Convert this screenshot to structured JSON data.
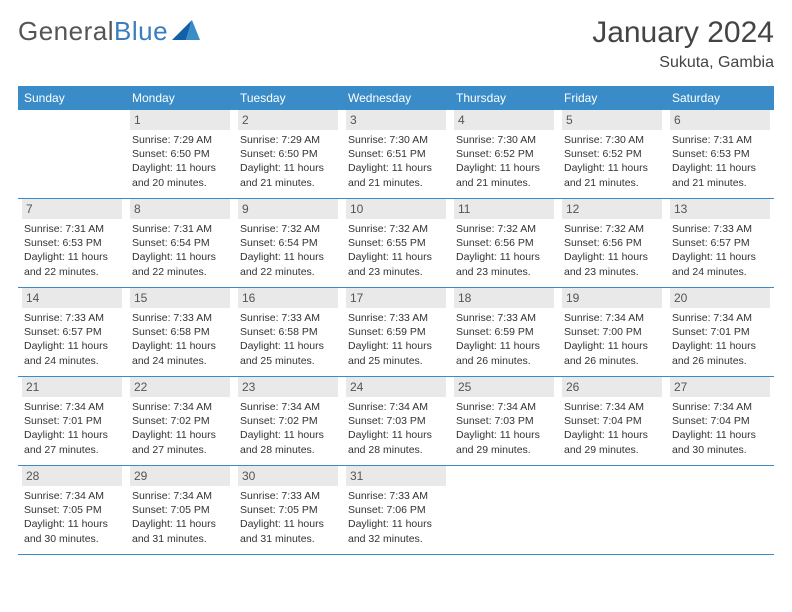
{
  "logo": {
    "text_gray": "General",
    "text_blue": "Blue"
  },
  "header": {
    "month_title": "January 2024",
    "location": "Sukuta, Gambia"
  },
  "colors": {
    "header_blue": "#3a8cc9",
    "text_dark": "#333333",
    "text_mid": "#555555",
    "daynum_bg": "#e9e9e9",
    "logo_blue": "#3a7ebf",
    "rule_blue": "#3a8cc9"
  },
  "typography": {
    "month_title_pt": 30,
    "location_pt": 16,
    "logo_pt": 26,
    "dow_pt": 12,
    "daynum_pt": 12,
    "info_pt": 10.5
  },
  "dow": [
    "Sunday",
    "Monday",
    "Tuesday",
    "Wednesday",
    "Thursday",
    "Friday",
    "Saturday"
  ],
  "weeks": [
    [
      {
        "n": "",
        "sunrise": "",
        "sunset": "",
        "daylight": ""
      },
      {
        "n": "1",
        "sunrise": "Sunrise: 7:29 AM",
        "sunset": "Sunset: 6:50 PM",
        "daylight": "Daylight: 11 hours and 20 minutes."
      },
      {
        "n": "2",
        "sunrise": "Sunrise: 7:29 AM",
        "sunset": "Sunset: 6:50 PM",
        "daylight": "Daylight: 11 hours and 21 minutes."
      },
      {
        "n": "3",
        "sunrise": "Sunrise: 7:30 AM",
        "sunset": "Sunset: 6:51 PM",
        "daylight": "Daylight: 11 hours and 21 minutes."
      },
      {
        "n": "4",
        "sunrise": "Sunrise: 7:30 AM",
        "sunset": "Sunset: 6:52 PM",
        "daylight": "Daylight: 11 hours and 21 minutes."
      },
      {
        "n": "5",
        "sunrise": "Sunrise: 7:30 AM",
        "sunset": "Sunset: 6:52 PM",
        "daylight": "Daylight: 11 hours and 21 minutes."
      },
      {
        "n": "6",
        "sunrise": "Sunrise: 7:31 AM",
        "sunset": "Sunset: 6:53 PM",
        "daylight": "Daylight: 11 hours and 21 minutes."
      }
    ],
    [
      {
        "n": "7",
        "sunrise": "Sunrise: 7:31 AM",
        "sunset": "Sunset: 6:53 PM",
        "daylight": "Daylight: 11 hours and 22 minutes."
      },
      {
        "n": "8",
        "sunrise": "Sunrise: 7:31 AM",
        "sunset": "Sunset: 6:54 PM",
        "daylight": "Daylight: 11 hours and 22 minutes."
      },
      {
        "n": "9",
        "sunrise": "Sunrise: 7:32 AM",
        "sunset": "Sunset: 6:54 PM",
        "daylight": "Daylight: 11 hours and 22 minutes."
      },
      {
        "n": "10",
        "sunrise": "Sunrise: 7:32 AM",
        "sunset": "Sunset: 6:55 PM",
        "daylight": "Daylight: 11 hours and 23 minutes."
      },
      {
        "n": "11",
        "sunrise": "Sunrise: 7:32 AM",
        "sunset": "Sunset: 6:56 PM",
        "daylight": "Daylight: 11 hours and 23 minutes."
      },
      {
        "n": "12",
        "sunrise": "Sunrise: 7:32 AM",
        "sunset": "Sunset: 6:56 PM",
        "daylight": "Daylight: 11 hours and 23 minutes."
      },
      {
        "n": "13",
        "sunrise": "Sunrise: 7:33 AM",
        "sunset": "Sunset: 6:57 PM",
        "daylight": "Daylight: 11 hours and 24 minutes."
      }
    ],
    [
      {
        "n": "14",
        "sunrise": "Sunrise: 7:33 AM",
        "sunset": "Sunset: 6:57 PM",
        "daylight": "Daylight: 11 hours and 24 minutes."
      },
      {
        "n": "15",
        "sunrise": "Sunrise: 7:33 AM",
        "sunset": "Sunset: 6:58 PM",
        "daylight": "Daylight: 11 hours and 24 minutes."
      },
      {
        "n": "16",
        "sunrise": "Sunrise: 7:33 AM",
        "sunset": "Sunset: 6:58 PM",
        "daylight": "Daylight: 11 hours and 25 minutes."
      },
      {
        "n": "17",
        "sunrise": "Sunrise: 7:33 AM",
        "sunset": "Sunset: 6:59 PM",
        "daylight": "Daylight: 11 hours and 25 minutes."
      },
      {
        "n": "18",
        "sunrise": "Sunrise: 7:33 AM",
        "sunset": "Sunset: 6:59 PM",
        "daylight": "Daylight: 11 hours and 26 minutes."
      },
      {
        "n": "19",
        "sunrise": "Sunrise: 7:34 AM",
        "sunset": "Sunset: 7:00 PM",
        "daylight": "Daylight: 11 hours and 26 minutes."
      },
      {
        "n": "20",
        "sunrise": "Sunrise: 7:34 AM",
        "sunset": "Sunset: 7:01 PM",
        "daylight": "Daylight: 11 hours and 26 minutes."
      }
    ],
    [
      {
        "n": "21",
        "sunrise": "Sunrise: 7:34 AM",
        "sunset": "Sunset: 7:01 PM",
        "daylight": "Daylight: 11 hours and 27 minutes."
      },
      {
        "n": "22",
        "sunrise": "Sunrise: 7:34 AM",
        "sunset": "Sunset: 7:02 PM",
        "daylight": "Daylight: 11 hours and 27 minutes."
      },
      {
        "n": "23",
        "sunrise": "Sunrise: 7:34 AM",
        "sunset": "Sunset: 7:02 PM",
        "daylight": "Daylight: 11 hours and 28 minutes."
      },
      {
        "n": "24",
        "sunrise": "Sunrise: 7:34 AM",
        "sunset": "Sunset: 7:03 PM",
        "daylight": "Daylight: 11 hours and 28 minutes."
      },
      {
        "n": "25",
        "sunrise": "Sunrise: 7:34 AM",
        "sunset": "Sunset: 7:03 PM",
        "daylight": "Daylight: 11 hours and 29 minutes."
      },
      {
        "n": "26",
        "sunrise": "Sunrise: 7:34 AM",
        "sunset": "Sunset: 7:04 PM",
        "daylight": "Daylight: 11 hours and 29 minutes."
      },
      {
        "n": "27",
        "sunrise": "Sunrise: 7:34 AM",
        "sunset": "Sunset: 7:04 PM",
        "daylight": "Daylight: 11 hours and 30 minutes."
      }
    ],
    [
      {
        "n": "28",
        "sunrise": "Sunrise: 7:34 AM",
        "sunset": "Sunset: 7:05 PM",
        "daylight": "Daylight: 11 hours and 30 minutes."
      },
      {
        "n": "29",
        "sunrise": "Sunrise: 7:34 AM",
        "sunset": "Sunset: 7:05 PM",
        "daylight": "Daylight: 11 hours and 31 minutes."
      },
      {
        "n": "30",
        "sunrise": "Sunrise: 7:33 AM",
        "sunset": "Sunset: 7:05 PM",
        "daylight": "Daylight: 11 hours and 31 minutes."
      },
      {
        "n": "31",
        "sunrise": "Sunrise: 7:33 AM",
        "sunset": "Sunset: 7:06 PM",
        "daylight": "Daylight: 11 hours and 32 minutes."
      },
      {
        "n": "",
        "sunrise": "",
        "sunset": "",
        "daylight": ""
      },
      {
        "n": "",
        "sunrise": "",
        "sunset": "",
        "daylight": ""
      },
      {
        "n": "",
        "sunrise": "",
        "sunset": "",
        "daylight": ""
      }
    ]
  ]
}
